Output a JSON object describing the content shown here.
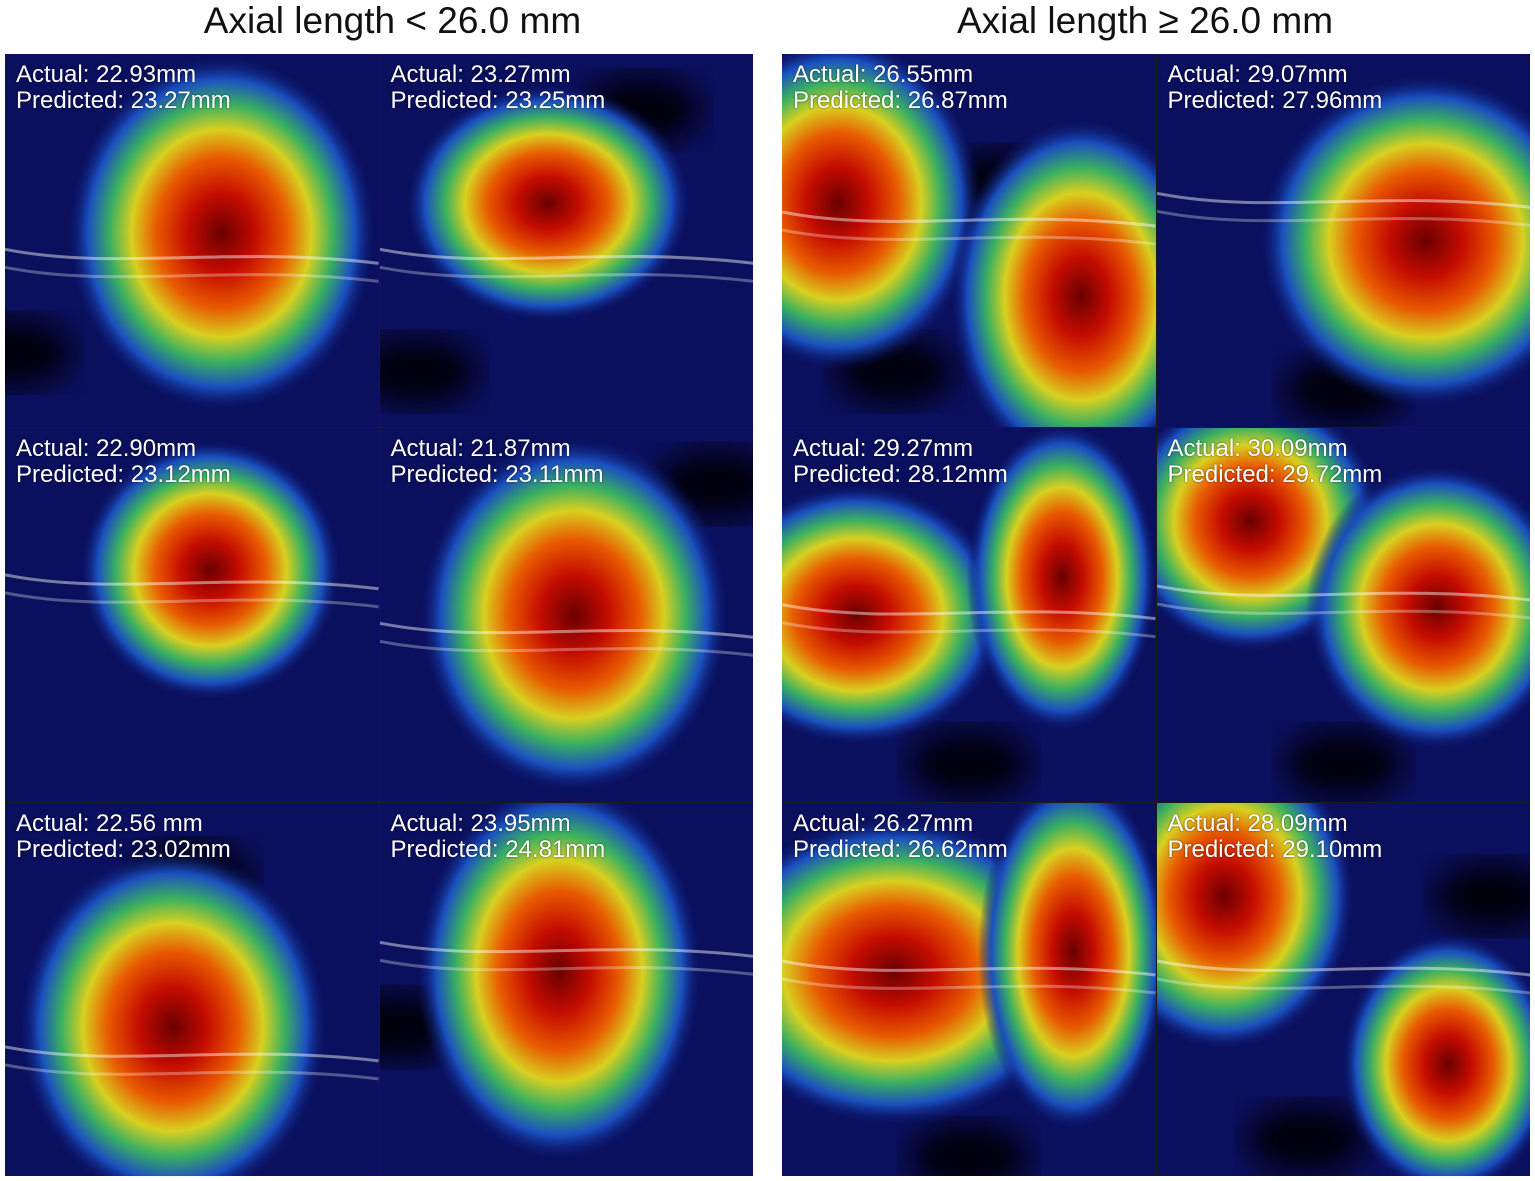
{
  "groups": [
    {
      "title": "Axial length < 26.0 mm",
      "panels": [
        {
          "actual": "Actual: 22.93mm",
          "predicted": "Predicted: 23.27mm",
          "hot": [
            [
              0.58,
              0.48,
              0.26,
              0.3
            ]
          ],
          "layer": 0.55,
          "void": [
            [
              0.02,
              0.8
            ]
          ]
        },
        {
          "actual": "Actual: 23.27mm",
          "predicted": "Predicted: 23.25mm",
          "hot": [
            [
              0.45,
              0.4,
              0.24,
              0.2
            ]
          ],
          "layer": 0.55,
          "void": [
            [
              0.7,
              0.15
            ],
            [
              0.1,
              0.85
            ]
          ]
        },
        {
          "actual": "Actual: 22.90mm",
          "predicted": "Predicted: 23.12mm",
          "hot": [
            [
              0.55,
              0.38,
              0.22,
              0.22
            ]
          ],
          "layer": 0.42,
          "void": []
        },
        {
          "actual": "Actual: 21.87mm",
          "predicted": "Predicted: 23.11mm",
          "hot": [
            [
              0.52,
              0.5,
              0.26,
              0.3
            ]
          ],
          "layer": 0.55,
          "void": [
            [
              0.9,
              0.15
            ]
          ]
        },
        {
          "actual": "Actual: 22.56 mm",
          "predicted": "Predicted: 23.02mm",
          "hot": [
            [
              0.45,
              0.6,
              0.26,
              0.3
            ]
          ],
          "layer": 0.68,
          "void": [
            [
              0.5,
              0.2
            ]
          ]
        },
        {
          "actual": "Actual: 23.95mm",
          "predicted": "Predicted: 24.81mm",
          "hot": [
            [
              0.48,
              0.45,
              0.24,
              0.32
            ]
          ],
          "layer": 0.4,
          "void": [
            [
              0.05,
              0.6
            ]
          ]
        }
      ]
    },
    {
      "title": "Axial length ≥ 26.0 mm",
      "panels": [
        {
          "actual": "Actual: 26.55mm",
          "predicted": "Predicted: 26.87mm",
          "hot": [
            [
              0.15,
              0.4,
              0.24,
              0.28
            ],
            [
              0.8,
              0.65,
              0.22,
              0.3
            ]
          ],
          "layer": 0.45,
          "void": [
            [
              0.3,
              0.85
            ],
            [
              0.6,
              0.35
            ]
          ]
        },
        {
          "actual": "Actual: 29.07mm",
          "predicted": "Predicted: 27.96mm",
          "hot": [
            [
              0.72,
              0.5,
              0.28,
              0.28
            ]
          ],
          "layer": 0.4,
          "void": [
            [
              0.5,
              0.9
            ]
          ]
        },
        {
          "actual": "Actual: 29.27mm",
          "predicted": "Predicted: 28.12mm",
          "hot": [
            [
              0.2,
              0.5,
              0.25,
              0.22
            ],
            [
              0.75,
              0.4,
              0.16,
              0.26
            ]
          ],
          "layer": 0.5,
          "void": [
            [
              0.5,
              0.9
            ]
          ]
        },
        {
          "actual": "Actual: 30.09mm",
          "predicted": "Predicted: 29.72mm",
          "hot": [
            [
              0.25,
              0.25,
              0.22,
              0.22
            ],
            [
              0.75,
              0.48,
              0.22,
              0.24
            ]
          ],
          "layer": 0.45,
          "void": [
            [
              0.5,
              0.9
            ]
          ]
        },
        {
          "actual": "Actual: 26.27mm",
          "predicted": "Predicted: 26.62mm",
          "hot": [
            [
              0.3,
              0.45,
              0.32,
              0.26
            ],
            [
              0.78,
              0.4,
              0.16,
              0.3
            ]
          ],
          "layer": 0.45,
          "void": [
            [
              0.5,
              0.95
            ]
          ]
        },
        {
          "actual": "Actual: 28.09mm",
          "predicted": "Predicted: 29.10mm",
          "hot": [
            [
              0.18,
              0.25,
              0.22,
              0.26
            ],
            [
              0.78,
              0.7,
              0.18,
              0.22
            ]
          ],
          "layer": 0.45,
          "void": [
            [
              0.9,
              0.25
            ],
            [
              0.4,
              0.9
            ]
          ]
        }
      ]
    }
  ]
}
